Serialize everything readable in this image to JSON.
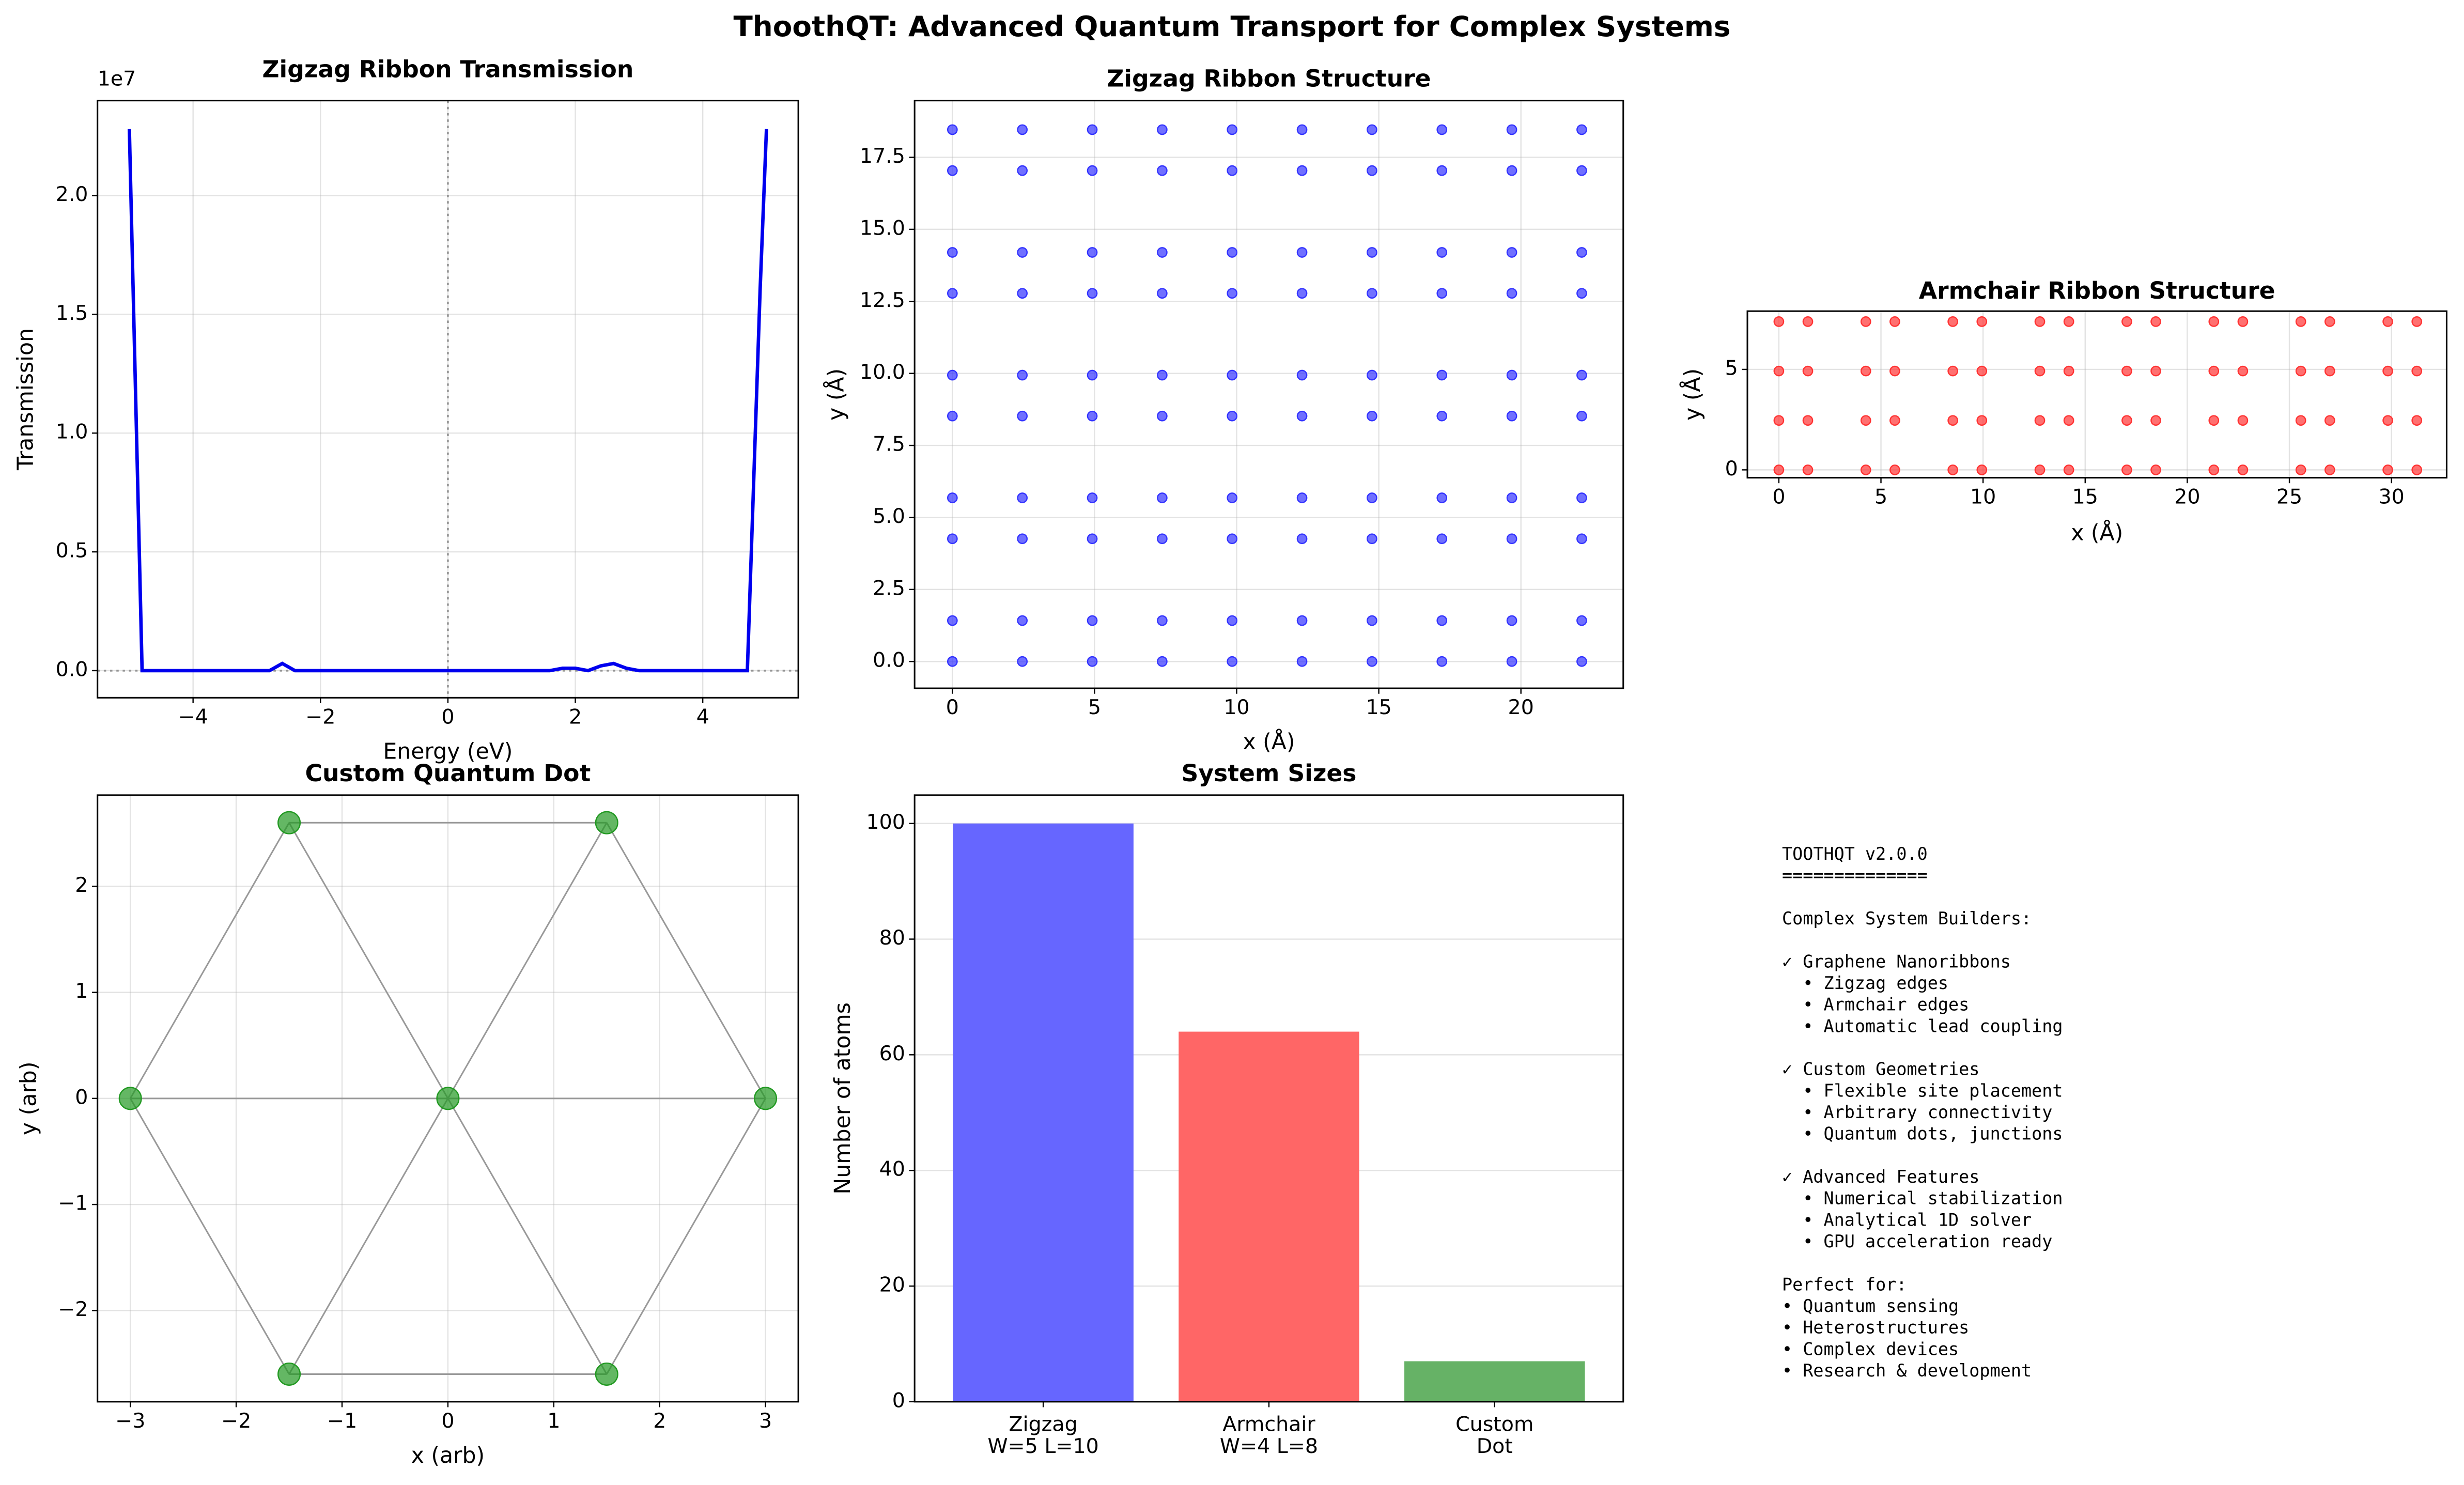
{
  "title": "ThoothQT: Advanced Quantum Transport for Complex Systems",
  "chart_data": [
    {
      "type": "line",
      "title": "Zigzag Ribbon Transmission",
      "xlabel": "Energy (eV)",
      "ylabel": "Transmission",
      "y_offset_label": "1e7",
      "x": [
        -5.0,
        -4.8,
        -4.0,
        -3.0,
        -2.8,
        -2.6,
        -2.4,
        -2.2,
        -1.0,
        0,
        1.0,
        1.6,
        1.8,
        2.0,
        2.2,
        2.4,
        2.6,
        2.8,
        3.0,
        4.0,
        4.7,
        4.9,
        5.0
      ],
      "values": [
        2.28,
        0,
        0,
        0,
        0,
        0.03,
        0,
        0,
        0,
        0,
        0,
        0,
        0.01,
        0.01,
        0,
        0.02,
        0.03,
        0.01,
        0,
        0,
        0,
        1.6,
        2.28
      ],
      "color": "#0000ee",
      "hlines": [
        0
      ],
      "vlines": [
        0
      ],
      "xlim": [
        -5.5,
        5.5
      ],
      "xticks": [
        {
          "value": -4,
          "label": "−4"
        },
        {
          "value": -2,
          "label": "−2"
        },
        0,
        2,
        4
      ],
      "ylim": [
        -0.114,
        2.4
      ],
      "yticks": [
        {
          "value": 0,
          "label": "0.0"
        },
        0.5,
        {
          "value": 1,
          "label": "1.0"
        },
        1.5,
        {
          "value": 2,
          "label": "2.0"
        }
      ],
      "grid": true
    },
    {
      "type": "scatter",
      "title": "Zigzag Ribbon Structure",
      "xlabel": "x (Å)",
      "ylabel": "y (Å)",
      "color": "#3333ff",
      "x": [
        0,
        2.46,
        4.92,
        7.38,
        9.84,
        12.3,
        14.76,
        17.22,
        19.68,
        22.14,
        0,
        2.46,
        4.92,
        7.38,
        9.84,
        12.3,
        14.76,
        17.22,
        19.68,
        22.14,
        0,
        2.46,
        4.92,
        7.38,
        9.84,
        12.3,
        14.76,
        17.22,
        19.68,
        22.14,
        0,
        2.46,
        4.92,
        7.38,
        9.84,
        12.3,
        14.76,
        17.22,
        19.68,
        22.14,
        0,
        2.46,
        4.92,
        7.38,
        9.84,
        12.3,
        14.76,
        17.22,
        19.68,
        22.14,
        0,
        2.46,
        4.92,
        7.38,
        9.84,
        12.3,
        14.76,
        17.22,
        19.68,
        22.14,
        0,
        2.46,
        4.92,
        7.38,
        9.84,
        12.3,
        14.76,
        17.22,
        19.68,
        22.14,
        0,
        2.46,
        4.92,
        7.38,
        9.84,
        12.3,
        14.76,
        17.22,
        19.68,
        22.14,
        0,
        2.46,
        4.92,
        7.38,
        9.84,
        12.3,
        14.76,
        17.22,
        19.68,
        22.14,
        0,
        2.46,
        4.92,
        7.38,
        9.84,
        12.3,
        14.76,
        17.22,
        19.68,
        22.14
      ],
      "values": [
        0,
        0,
        0,
        0,
        0,
        0,
        0,
        0,
        0,
        0,
        1.42,
        1.42,
        1.42,
        1.42,
        1.42,
        1.42,
        1.42,
        1.42,
        1.42,
        1.42,
        4.26,
        4.26,
        4.26,
        4.26,
        4.26,
        4.26,
        4.26,
        4.26,
        4.26,
        4.26,
        5.68,
        5.68,
        5.68,
        5.68,
        5.68,
        5.68,
        5.68,
        5.68,
        5.68,
        5.68,
        8.52,
        8.52,
        8.52,
        8.52,
        8.52,
        8.52,
        8.52,
        8.52,
        8.52,
        8.52,
        9.94,
        9.94,
        9.94,
        9.94,
        9.94,
        9.94,
        9.94,
        9.94,
        9.94,
        9.94,
        12.78,
        12.78,
        12.78,
        12.78,
        12.78,
        12.78,
        12.78,
        12.78,
        12.78,
        12.78,
        14.2,
        14.2,
        14.2,
        14.2,
        14.2,
        14.2,
        14.2,
        14.2,
        14.2,
        14.2,
        17.04,
        17.04,
        17.04,
        17.04,
        17.04,
        17.04,
        17.04,
        17.04,
        17.04,
        17.04,
        18.46,
        18.46,
        18.46,
        18.46,
        18.46,
        18.46,
        18.46,
        18.46,
        18.46,
        18.46
      ],
      "xlim": [
        -1.33,
        23.6
      ],
      "xticks": [
        0,
        5,
        10,
        15,
        20
      ],
      "ylim": [
        -0.93,
        19.47
      ],
      "yticks": [
        {
          "value": 0,
          "label": "0.0"
        },
        2.5,
        {
          "value": 5,
          "label": "5.0"
        },
        7.5,
        {
          "value": 10,
          "label": "10.0"
        },
        12.5,
        {
          "value": 15,
          "label": "15.0"
        },
        17.5
      ],
      "grid": true
    },
    {
      "type": "scatter",
      "title": "Armchair Ribbon Structure",
      "xlabel": "x (Å)",
      "ylabel": "y (Å)",
      "color": "#ff3333",
      "x": [
        0,
        1.42,
        4.26,
        5.68,
        8.52,
        9.94,
        12.78,
        14.2,
        17.04,
        18.46,
        21.3,
        22.72,
        25.56,
        26.98,
        29.82,
        31.24,
        0,
        1.42,
        4.26,
        5.68,
        8.52,
        9.94,
        12.78,
        14.2,
        17.04,
        18.46,
        21.3,
        22.72,
        25.56,
        26.98,
        29.82,
        31.24,
        0,
        1.42,
        4.26,
        5.68,
        8.52,
        9.94,
        12.78,
        14.2,
        17.04,
        18.46,
        21.3,
        22.72,
        25.56,
        26.98,
        29.82,
        31.24,
        0,
        1.42,
        4.26,
        5.68,
        8.52,
        9.94,
        12.78,
        14.2,
        17.04,
        18.46,
        21.3,
        22.72,
        25.56,
        26.98,
        29.82,
        31.24
      ],
      "values": [
        0,
        0,
        0,
        0,
        0,
        0,
        0,
        0,
        0,
        0,
        0,
        0,
        0,
        0,
        0,
        0,
        2.46,
        2.46,
        2.46,
        2.46,
        2.46,
        2.46,
        2.46,
        2.46,
        2.46,
        2.46,
        2.46,
        2.46,
        2.46,
        2.46,
        2.46,
        2.46,
        4.92,
        4.92,
        4.92,
        4.92,
        4.92,
        4.92,
        4.92,
        4.92,
        4.92,
        4.92,
        4.92,
        4.92,
        4.92,
        4.92,
        4.92,
        4.92,
        7.38,
        7.38,
        7.38,
        7.38,
        7.38,
        7.38,
        7.38,
        7.38,
        7.38,
        7.38,
        7.38,
        7.38,
        7.38,
        7.38,
        7.38,
        7.38
      ],
      "xlim": [
        -1.54,
        32.7
      ],
      "xticks": [
        0,
        5,
        10,
        15,
        20,
        25,
        30
      ],
      "ylim": [
        -0.39,
        7.9
      ],
      "yticks": [
        0,
        5
      ],
      "grid": true
    },
    {
      "type": "scatter",
      "title": "Custom Quantum Dot",
      "xlabel": "x (arb)",
      "ylabel": "y (arb)",
      "color": "#229922",
      "x": [
        0,
        3,
        1.5,
        -1.5,
        -3,
        -1.5,
        1.5
      ],
      "values": [
        0,
        0,
        2.6,
        2.6,
        0,
        -2.6,
        -2.6
      ],
      "edges": [
        [
          0,
          1
        ],
        [
          0,
          2
        ],
        [
          0,
          3
        ],
        [
          0,
          4
        ],
        [
          0,
          5
        ],
        [
          0,
          6
        ],
        [
          1,
          2
        ],
        [
          2,
          3
        ],
        [
          3,
          4
        ],
        [
          4,
          5
        ],
        [
          5,
          6
        ],
        [
          6,
          1
        ]
      ],
      "xlim": [
        -3.31,
        3.31
      ],
      "xticks": [
        {
          "value": -3,
          "label": "−3"
        },
        {
          "value": -2,
          "label": "−2"
        },
        {
          "value": -1,
          "label": "−1"
        },
        0,
        1,
        2,
        3
      ],
      "ylim": [
        -2.86,
        2.86
      ],
      "yticks": [
        {
          "value": -2,
          "label": "−2"
        },
        {
          "value": -1,
          "label": "−1"
        },
        0,
        1,
        2
      ],
      "grid": true
    },
    {
      "type": "bar",
      "title": "System Sizes",
      "ylabel": "Number of atoms",
      "categories": [
        "Zigzag\nW=5 L=10",
        "Armchair\nW=4 L=8",
        "Custom\nDot"
      ],
      "values": [
        100,
        64,
        7
      ],
      "colors": [
        "#6666ff",
        "#ff6666",
        "#66b266"
      ],
      "ylim": [
        0,
        104.9
      ],
      "yticks": [
        0,
        20,
        40,
        60,
        80,
        100
      ],
      "grid": true
    }
  ],
  "text_panel": {
    "blocks": [
      [
        "TOOTHQT v2.0.0",
        "=============="
      ],
      [
        "Complex System Builders:"
      ],
      [
        "✓ Graphene Nanoribbons",
        "  • Zigzag edges",
        "  • Armchair edges",
        "  • Automatic lead coupling"
      ],
      [
        "✓ Custom Geometries",
        "  • Flexible site placement",
        "  • Arbitrary connectivity",
        "  • Quantum dots, junctions"
      ],
      [
        "✓ Advanced Features",
        "  • Numerical stabilization",
        "  • Analytical 1D solver",
        "  • GPU acceleration ready"
      ],
      [
        "Perfect for:",
        "• Quantum sensing",
        "• Heterostructures",
        "• Complex devices",
        "• Research & development"
      ]
    ]
  }
}
